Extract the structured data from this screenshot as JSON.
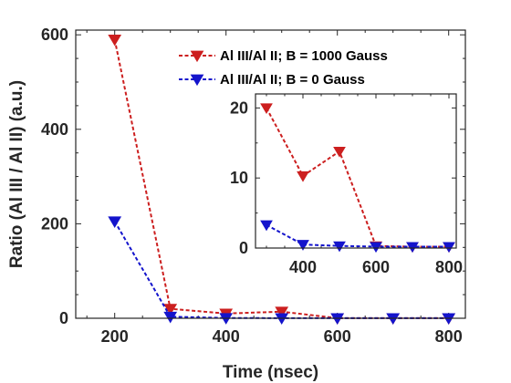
{
  "chart_data": [
    {
      "type": "line",
      "role": "main",
      "xlabel": "Time (nsec)",
      "ylabel": "Ratio (Al III / Al II) (a.u.)",
      "xlim": [
        130,
        830
      ],
      "ylim": [
        0,
        610
      ],
      "xticks": [
        200,
        400,
        600,
        800
      ],
      "yticks": [
        0,
        200,
        400,
        600
      ],
      "grid": false,
      "legend_position": "top-right",
      "series": [
        {
          "name": "Al III/Al II; B = 1000 Gauss",
          "color": "#cc1f1f",
          "marker": "triangle-down",
          "line_style": "dashed",
          "x": [
            200,
            300,
            400,
            500,
            600,
            700,
            800
          ],
          "y": [
            590,
            20,
            10,
            14,
            0.3,
            0.2,
            0.2
          ]
        },
        {
          "name": "Al III/Al II; B = 0 Gauss",
          "color": "#1414cc",
          "marker": "triangle-down",
          "line_style": "dashed",
          "x": [
            200,
            300,
            400,
            500,
            600,
            700,
            800
          ],
          "y": [
            205,
            3.3,
            0.5,
            0.3,
            0.2,
            0.2,
            0.2
          ]
        }
      ]
    },
    {
      "type": "line",
      "role": "inset",
      "xlim": [
        270,
        820
      ],
      "ylim": [
        0,
        22
      ],
      "xticks": [
        400,
        600,
        800
      ],
      "yticks": [
        0,
        10,
        20
      ],
      "grid": false,
      "series": [
        {
          "color": "#cc1f1f",
          "marker": "triangle-down",
          "line_style": "dashed",
          "x": [
            300,
            400,
            500,
            600,
            700,
            800
          ],
          "y": [
            20,
            10.3,
            13.8,
            0.3,
            0.2,
            0.2
          ]
        },
        {
          "color": "#1414cc",
          "marker": "triangle-down",
          "line_style": "dashed",
          "x": [
            300,
            400,
            500,
            600,
            700,
            800
          ],
          "y": [
            3.3,
            0.5,
            0.3,
            0.2,
            0.2,
            0.2
          ]
        }
      ]
    }
  ]
}
